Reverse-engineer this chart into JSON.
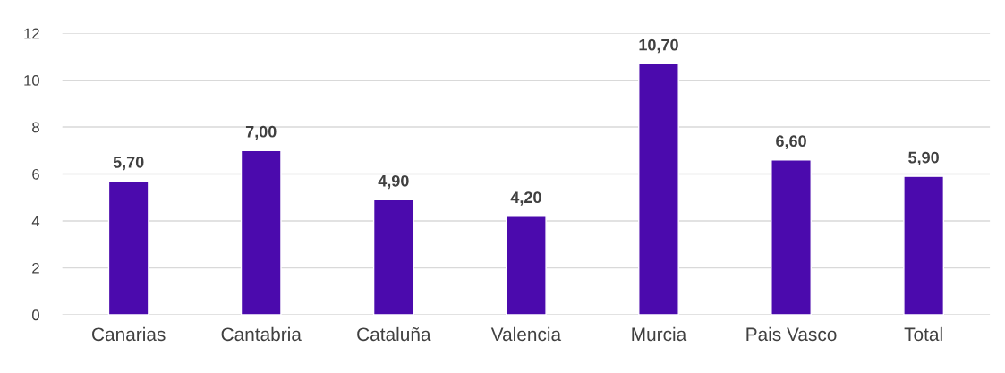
{
  "chart_data": {
    "type": "bar",
    "categories": [
      "Canarias",
      "Cantabria",
      "Cataluña",
      "Valencia",
      "Murcia",
      "Pais Vasco",
      "Total"
    ],
    "values": [
      5.7,
      7.0,
      4.9,
      4.2,
      10.7,
      6.6,
      5.9
    ],
    "value_labels": [
      "5,70",
      "7,00",
      "4,90",
      "4,20",
      "10,70",
      "6,60",
      "5,90"
    ],
    "color": "#4b0aad",
    "ylim": [
      0,
      12
    ],
    "yticks": [
      0,
      2,
      4,
      6,
      8,
      10,
      12
    ],
    "grid": "y",
    "legend": false
  }
}
